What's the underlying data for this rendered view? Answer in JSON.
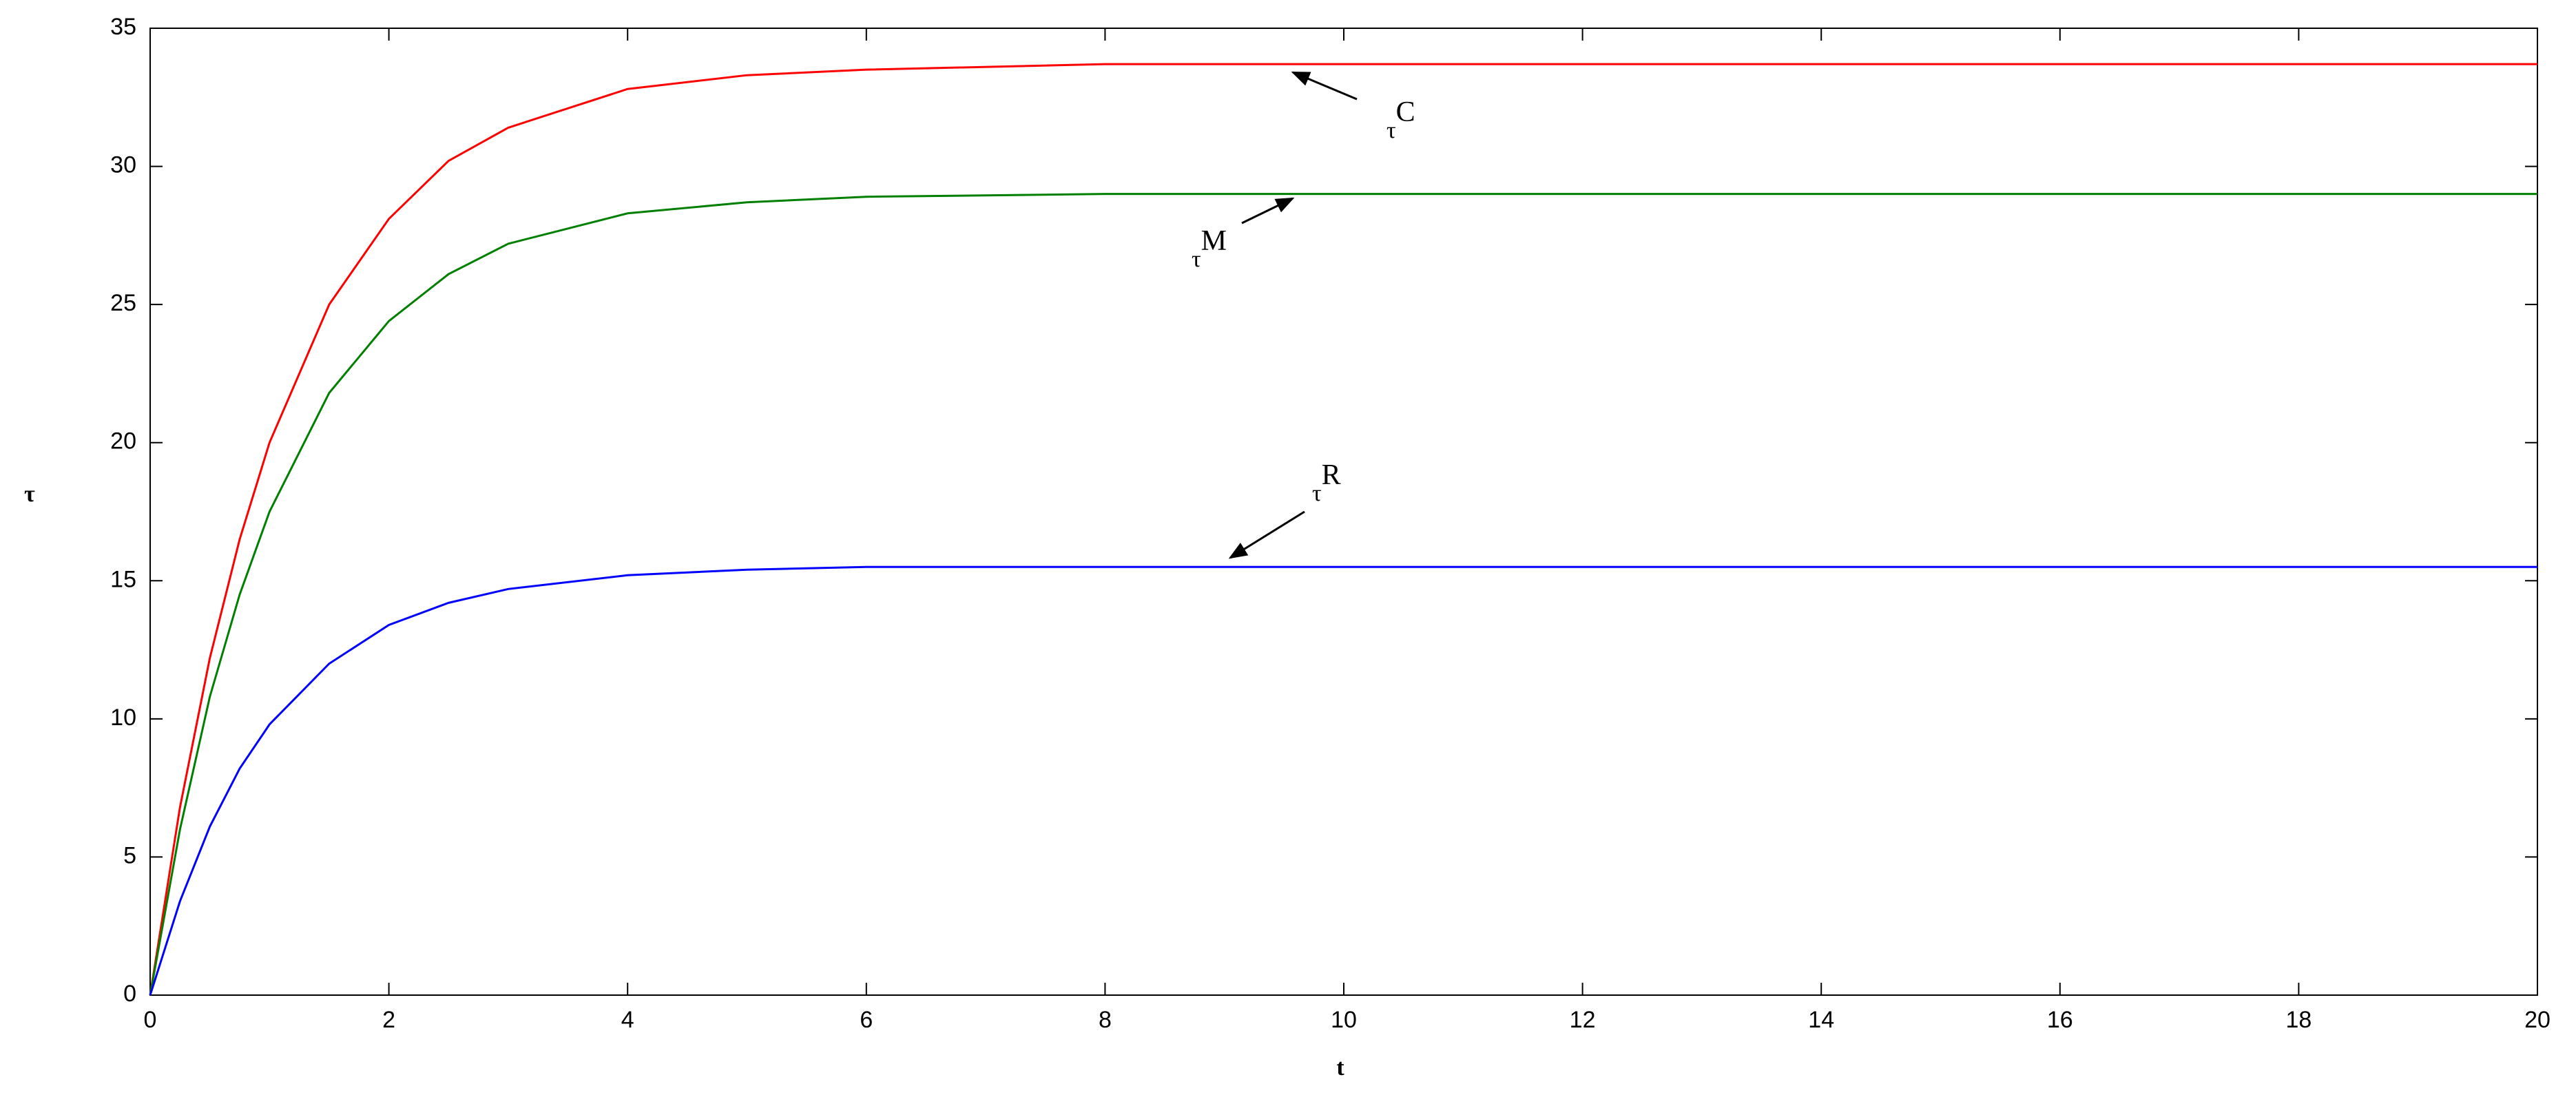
{
  "chart_data": {
    "type": "line",
    "xlabel": "t",
    "ylabel": "τ",
    "x": [
      0,
      0.25,
      0.5,
      0.75,
      1,
      1.5,
      2,
      2.5,
      3,
      4,
      5,
      6,
      8,
      10,
      15,
      20
    ],
    "series": [
      {
        "name": "τC",
        "color": "#ff0000",
        "values": [
          0,
          6.8,
          12.2,
          16.5,
          20.0,
          25.0,
          28.1,
          30.2,
          31.4,
          32.8,
          33.3,
          33.5,
          33.7,
          33.7,
          33.7,
          33.7
        ]
      },
      {
        "name": "τM",
        "color": "#007f00",
        "values": [
          0,
          6.0,
          10.8,
          14.5,
          17.5,
          21.8,
          24.4,
          26.1,
          27.2,
          28.3,
          28.7,
          28.9,
          29.0,
          29.0,
          29.0,
          29.0
        ]
      },
      {
        "name": "τR",
        "color": "#0000ff",
        "values": [
          0,
          3.4,
          6.1,
          8.2,
          9.8,
          12.0,
          13.4,
          14.2,
          14.7,
          15.2,
          15.4,
          15.5,
          15.5,
          15.5,
          15.5,
          15.5
        ]
      }
    ],
    "annotations": [
      {
        "text": "τ",
        "sup": "C"
      },
      {
        "text": "τ",
        "sup": "M"
      },
      {
        "text": "τ",
        "sup": "R"
      }
    ],
    "xlim": [
      0,
      20
    ],
    "xticks": [
      0,
      2,
      4,
      6,
      8,
      10,
      12,
      14,
      16,
      18,
      20
    ],
    "ylim": [
      0,
      35
    ],
    "yticks": [
      0,
      5,
      10,
      15,
      20,
      25,
      30,
      35
    ],
    "grid": false
  }
}
